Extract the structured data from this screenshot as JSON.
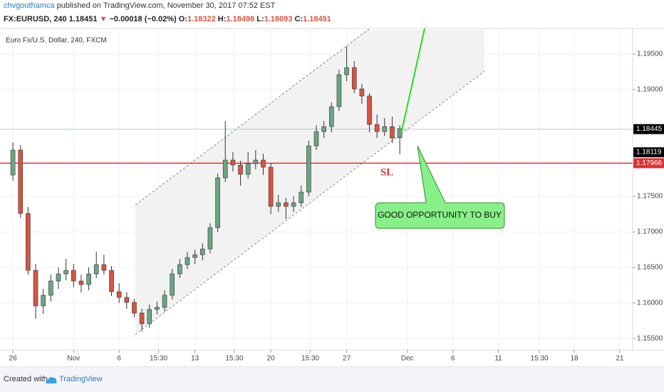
{
  "header": {
    "author": "chvgouthamca",
    "published": " published on TradingView.com, November 30, 2017 07:52 EST",
    "symbol": "FX:EURUSD, 240",
    "arrow": "▼",
    "change": "−0.00018 (−0.02%)",
    "open_label": "O:",
    "high_label": "H:",
    "low_label": "L:",
    "close_label": "C:"
  },
  "chart_data": {
    "type": "candlestick",
    "legend_title": "Euro Fx/U.S. Dollar, 240, FXCM",
    "up_color": "#6ba583",
    "down_color": "#d75442",
    "grid": true,
    "xlim": [
      -0.85,
      40.85
    ],
    "ylim": [
      1.1534,
      1.1986
    ],
    "xticks": [
      {
        "value": 0,
        "label": "26"
      },
      {
        "value": 4,
        "label": "Nov"
      },
      {
        "value": 7,
        "label": "6"
      },
      {
        "value": 9.6,
        "label": "15:30"
      },
      {
        "value": 12,
        "label": "13"
      },
      {
        "value": 14.6,
        "label": "15:30"
      },
      {
        "value": 17,
        "label": "20"
      },
      {
        "value": 19.6,
        "label": "15:30"
      },
      {
        "value": 22,
        "label": "27"
      },
      {
        "value": 26,
        "label": "Dec"
      },
      {
        "value": 29,
        "label": "6"
      },
      {
        "value": 32,
        "label": "11"
      },
      {
        "value": 34.7,
        "label": "15:30"
      },
      {
        "value": 37,
        "label": "18"
      },
      {
        "value": 40,
        "label": "21"
      }
    ],
    "yticks": [
      {
        "value": 1.155,
        "label": "1.15500"
      },
      {
        "value": 1.16,
        "label": "1.16000"
      },
      {
        "value": 1.165,
        "label": "1.16500"
      },
      {
        "value": 1.17,
        "label": "1.17000"
      },
      {
        "value": 1.175,
        "label": "1.17500"
      },
      {
        "value": 1.19,
        "label": "1.19000"
      },
      {
        "value": 1.195,
        "label": "1.19500"
      }
    ],
    "candles": {
      "x": [
        0,
        0.5,
        1,
        1.5,
        2,
        2.5,
        3,
        3.5,
        4,
        4.5,
        5,
        5.5,
        6,
        6.5,
        7,
        7.5,
        8,
        8.5,
        9,
        9.5,
        10,
        10.5,
        11,
        11.5,
        12,
        12.5,
        13,
        13.5,
        14,
        14.5,
        15,
        15.5,
        16,
        16.5,
        17,
        17.5,
        18,
        18.5,
        19,
        19.5,
        20,
        20.5,
        21,
        21.5,
        22,
        22.5,
        23,
        23.5,
        24,
        24.5,
        25,
        25.5
      ],
      "open": [
        1.178,
        1.1815,
        1.1726,
        1.1646,
        1.1596,
        1.1611,
        1.1631,
        1.1641,
        1.1646,
        1.1631,
        1.1626,
        1.1641,
        1.1654,
        1.1646,
        1.1616,
        1.1608,
        1.1601,
        1.1586,
        1.1571,
        1.1591,
        1.1594,
        1.1611,
        1.1641,
        1.1654,
        1.1664,
        1.1668,
        1.1676,
        1.1706,
        1.1776,
        1.1801,
        1.1794,
        1.1781,
        1.1796,
        1.1801,
        1.1791,
        1.1736,
        1.1741,
        1.1736,
        1.1741,
        1.1756,
        1.1821,
        1.1841,
        1.1848,
        1.1876,
        1.1921,
        1.1931,
        1.1901,
        1.1891,
        1.1851,
        1.1841,
        1.1848,
        1.18322
      ],
      "high": [
        1.1826,
        1.1822,
        1.1735,
        1.1655,
        1.162,
        1.164,
        1.165,
        1.1662,
        1.1655,
        1.164,
        1.165,
        1.1672,
        1.1668,
        1.1652,
        1.1628,
        1.1615,
        1.1606,
        1.1592,
        1.1598,
        1.1602,
        1.1618,
        1.1648,
        1.1662,
        1.1672,
        1.1675,
        1.1684,
        1.1712,
        1.1782,
        1.1856,
        1.1812,
        1.18,
        1.1812,
        1.1815,
        1.181,
        1.1796,
        1.1752,
        1.1748,
        1.175,
        1.1765,
        1.1828,
        1.185,
        1.1856,
        1.1882,
        1.1928,
        1.1961,
        1.194,
        1.1908,
        1.1895,
        1.1865,
        1.186,
        1.1862,
        1.18498
      ],
      "low": [
        1.1772,
        1.172,
        1.164,
        1.1578,
        1.1585,
        1.1602,
        1.162,
        1.1632,
        1.1622,
        1.1615,
        1.1618,
        1.1635,
        1.164,
        1.161,
        1.16,
        1.1592,
        1.158,
        1.156,
        1.1565,
        1.1584,
        1.1588,
        1.1605,
        1.1635,
        1.1648,
        1.1655,
        1.166,
        1.167,
        1.17,
        1.177,
        1.1785,
        1.1765,
        1.1775,
        1.1788,
        1.178,
        1.1725,
        1.1728,
        1.1718,
        1.1728,
        1.1735,
        1.175,
        1.1815,
        1.1832,
        1.184,
        1.187,
        1.1912,
        1.1895,
        1.188,
        1.184,
        1.1832,
        1.1835,
        1.1825,
        1.18093
      ],
      "close": [
        1.1815,
        1.1726,
        1.1646,
        1.1596,
        1.1611,
        1.1631,
        1.1641,
        1.1646,
        1.1631,
        1.1626,
        1.1641,
        1.1654,
        1.1646,
        1.1616,
        1.1608,
        1.1601,
        1.1586,
        1.1571,
        1.1591,
        1.1594,
        1.1611,
        1.1641,
        1.1654,
        1.1664,
        1.1668,
        1.1676,
        1.1706,
        1.1776,
        1.1801,
        1.1794,
        1.1781,
        1.1796,
        1.1801,
        1.1791,
        1.1736,
        1.1741,
        1.1736,
        1.1741,
        1.1756,
        1.1821,
        1.1841,
        1.1848,
        1.1876,
        1.1921,
        1.1931,
        1.1901,
        1.1891,
        1.1851,
        1.1841,
        1.1848,
        1.1832,
        1.18451
      ]
    },
    "price_lines": [
      {
        "value": 1.18445,
        "color": "#000000",
        "line_color": "#b9cfd8",
        "line": true
      },
      {
        "value": 1.18119,
        "color": "#000000",
        "line_color": "#b9cfd8",
        "line": false
      },
      {
        "value": 1.17966,
        "color": "#e03030",
        "line_color": "#e03030",
        "line": true
      }
    ],
    "annotations": {
      "stop_loss": "SL",
      "callout": "GOOD OPPORTUNITY TO BUY"
    }
  },
  "footer": {
    "created": "Created with",
    "brand": "TradingView"
  }
}
